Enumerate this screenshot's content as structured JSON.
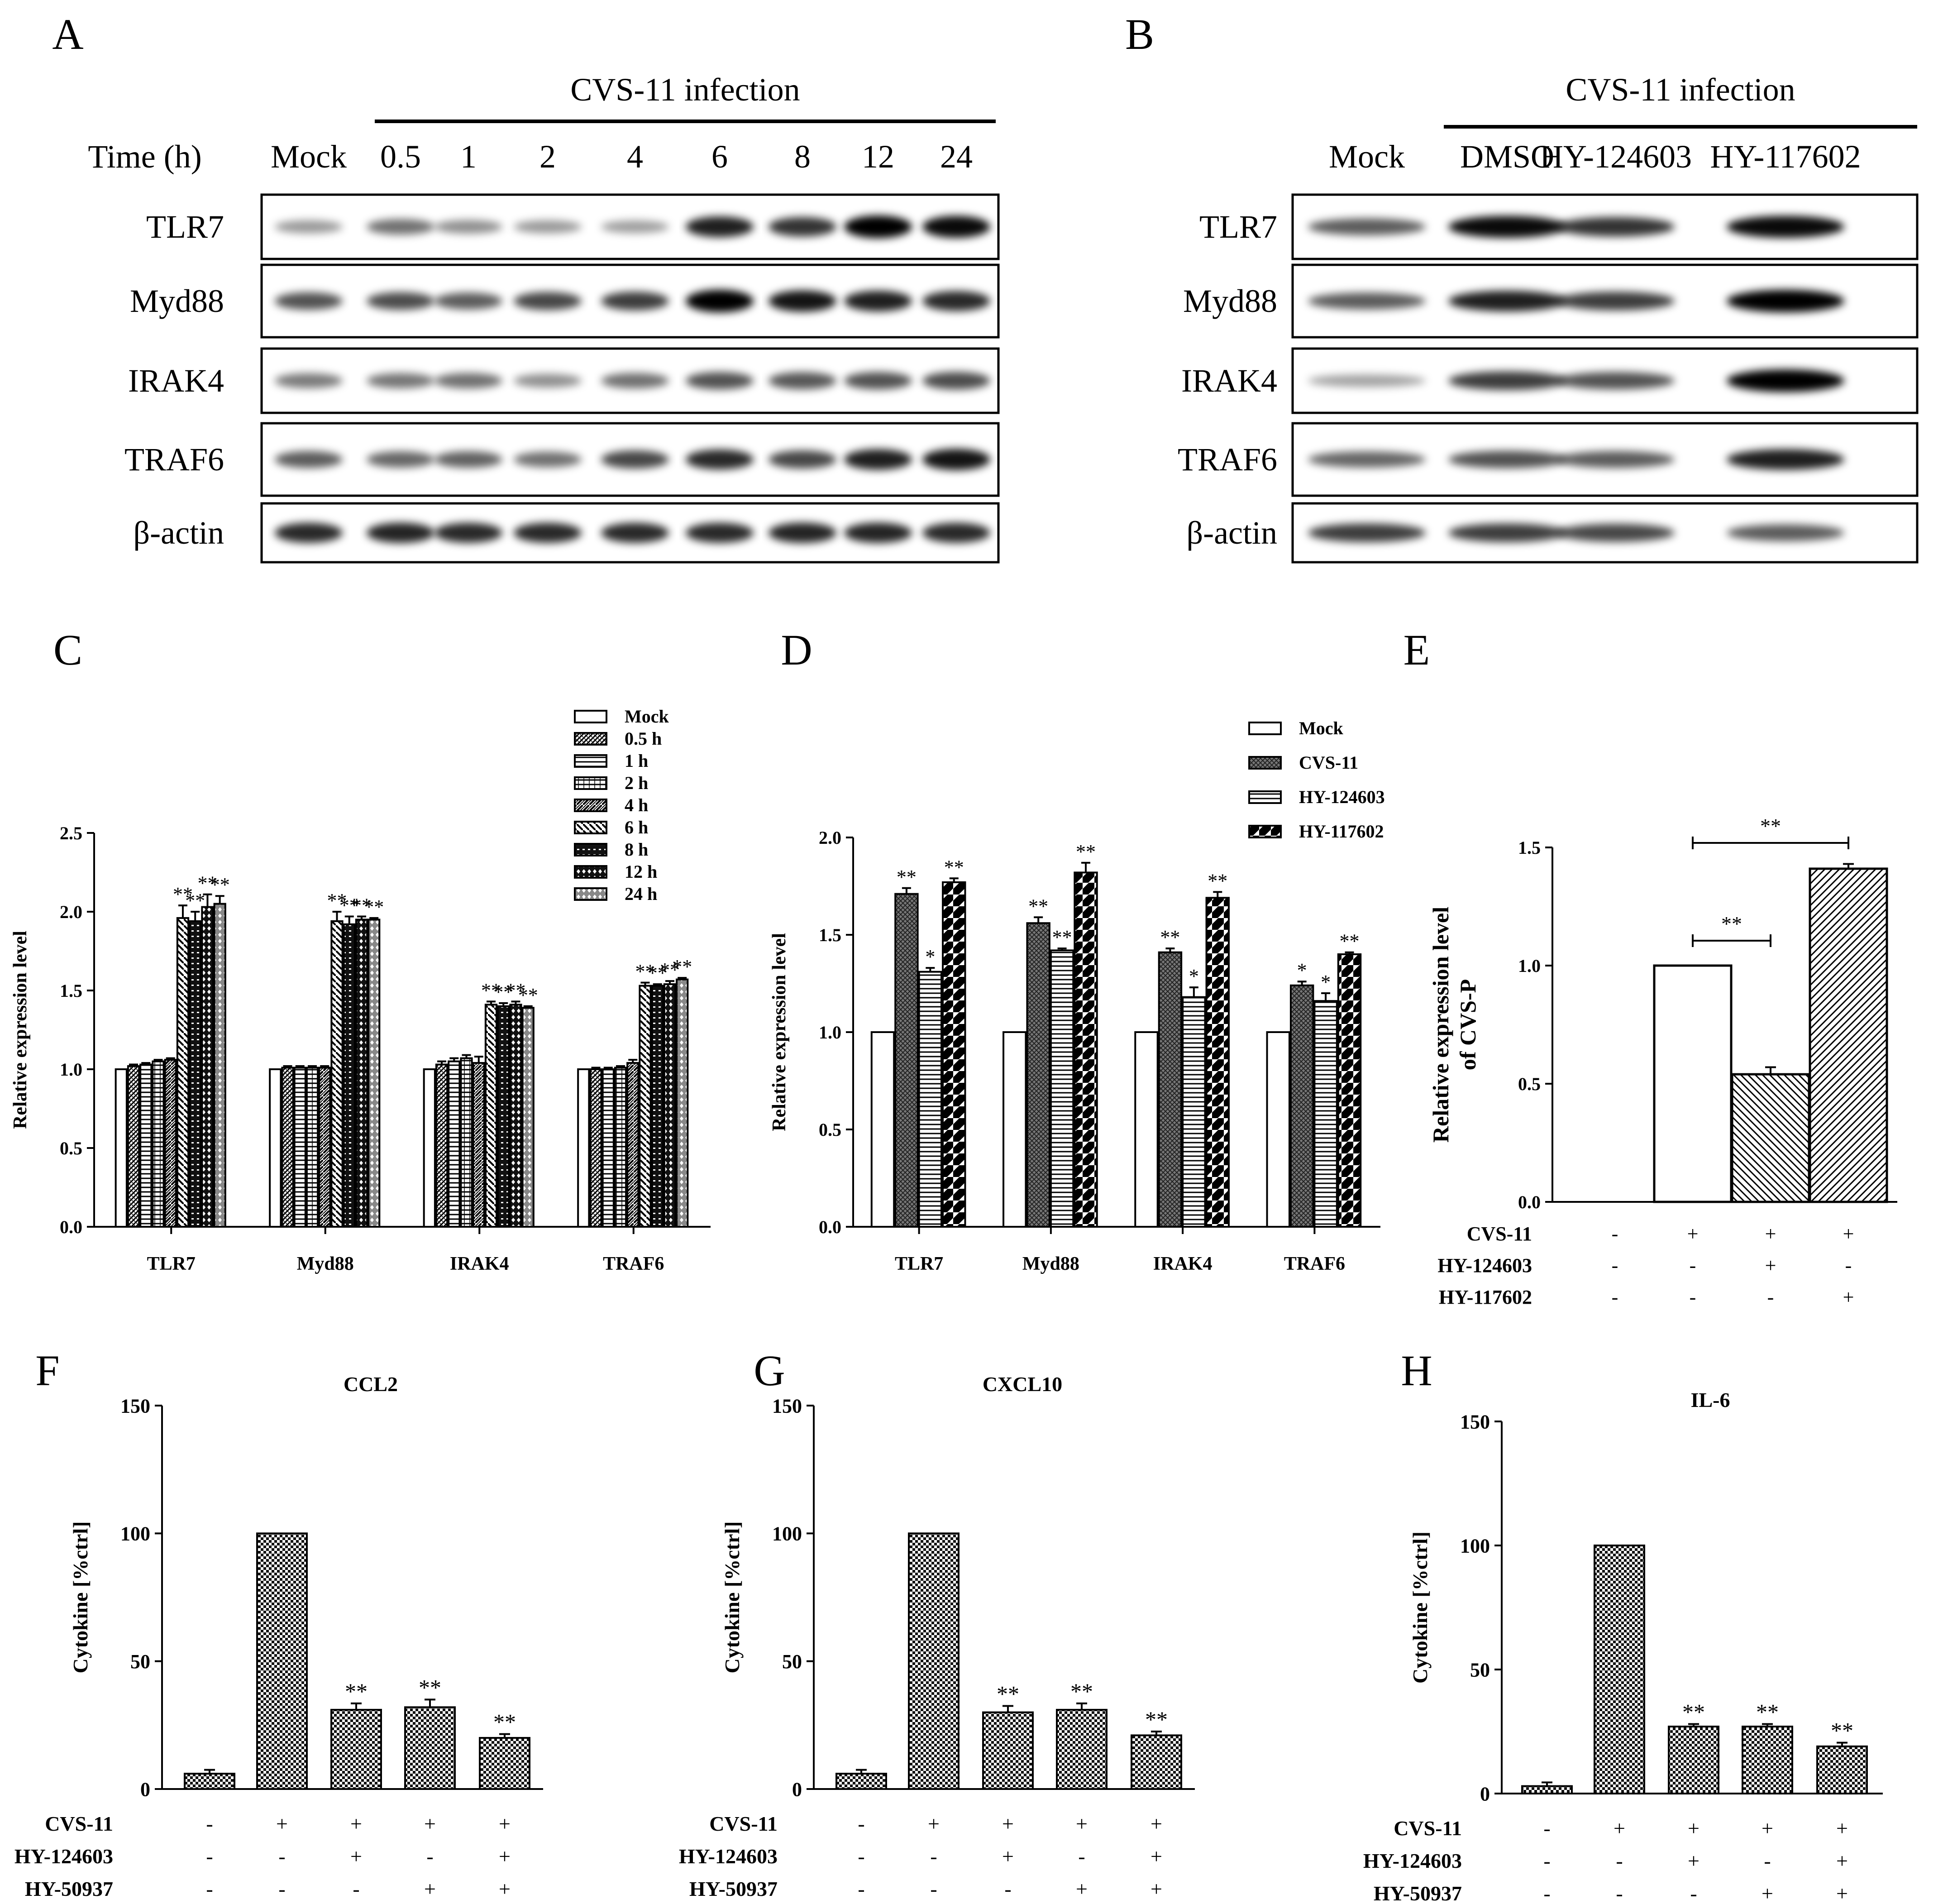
{
  "panels": {
    "A": {
      "letter": "A",
      "header": "CVS-11 infection",
      "time_label": "Time (h)",
      "lanes": [
        "Mock",
        "0.5",
        "1",
        "2",
        "4",
        "6",
        "8",
        "12",
        "24"
      ],
      "rows": [
        "TLR7",
        "Myd88",
        "IRAK4",
        "TRAF6",
        "β-actin"
      ]
    },
    "B": {
      "letter": "B",
      "header": "CVS-11 infection",
      "lanes": [
        "Mock",
        "DMSO",
        "HY-124603",
        "HY-117602"
      ],
      "rows": [
        "TLR7",
        "Myd88",
        "IRAK4",
        "TRAF6",
        "β-actin"
      ]
    },
    "C": {
      "letter": "C"
    },
    "D": {
      "letter": "D"
    },
    "E": {
      "letter": "E"
    },
    "F": {
      "letter": "F"
    },
    "G": {
      "letter": "G"
    },
    "H": {
      "letter": "H"
    }
  },
  "blots": {
    "A": [
      [
        0.25,
        0.45,
        0.3,
        0.25,
        0.22,
        0.85,
        0.75,
        1.0,
        0.95
      ],
      [
        0.6,
        0.62,
        0.55,
        0.65,
        0.7,
        1.0,
        0.9,
        0.85,
        0.8
      ],
      [
        0.4,
        0.42,
        0.45,
        0.3,
        0.45,
        0.6,
        0.58,
        0.6,
        0.62
      ],
      [
        0.55,
        0.5,
        0.52,
        0.45,
        0.65,
        0.8,
        0.65,
        0.85,
        0.9
      ],
      [
        0.8,
        0.82,
        0.8,
        0.8,
        0.8,
        0.8,
        0.82,
        0.82,
        0.8
      ]
    ],
    "B": [
      [
        0.55,
        0.95,
        0.75,
        0.95
      ],
      [
        0.55,
        0.85,
        0.7,
        1.0
      ],
      [
        0.2,
        0.7,
        0.6,
        1.0
      ],
      [
        0.5,
        0.6,
        0.55,
        0.85
      ],
      [
        0.7,
        0.7,
        0.65,
        0.55
      ]
    ]
  },
  "chart_data": [
    {
      "panel": "C",
      "type": "bar",
      "title": "",
      "xlabel": "",
      "ylabel": "Relative expression level",
      "ylim": [
        0,
        2.5
      ],
      "yticks": [
        "0.0",
        "0.5",
        "1.0",
        "1.5",
        "2.0",
        "2.5"
      ],
      "categories": [
        "TLR7",
        "Myd88",
        "IRAK4",
        "TRAF6"
      ],
      "series": [
        {
          "name": "Mock",
          "values": [
            1.0,
            1.0,
            1.0,
            1.0
          ],
          "err": [
            0.0,
            0.0,
            0.0,
            0.0
          ],
          "sig": [
            "",
            "",
            "",
            ""
          ]
        },
        {
          "name": "0.5 h",
          "values": [
            1.02,
            1.01,
            1.03,
            1.0
          ],
          "err": [
            0.01,
            0.01,
            0.02,
            0.01
          ],
          "sig": [
            "",
            "",
            "",
            ""
          ]
        },
        {
          "name": "1 h",
          "values": [
            1.03,
            1.01,
            1.05,
            1.0
          ],
          "err": [
            0.01,
            0.01,
            0.02,
            0.01
          ],
          "sig": [
            "",
            "",
            "",
            ""
          ]
        },
        {
          "name": "2 h",
          "values": [
            1.05,
            1.01,
            1.07,
            1.01
          ],
          "err": [
            0.01,
            0.01,
            0.02,
            0.01
          ],
          "sig": [
            "",
            "",
            "",
            ""
          ]
        },
        {
          "name": "4 h",
          "values": [
            1.06,
            1.01,
            1.04,
            1.04
          ],
          "err": [
            0.01,
            0.01,
            0.04,
            0.02
          ],
          "sig": [
            "",
            "",
            "",
            ""
          ]
        },
        {
          "name": "6 h",
          "values": [
            1.96,
            1.94,
            1.41,
            1.53
          ],
          "err": [
            0.08,
            0.06,
            0.02,
            0.02
          ],
          "sig": [
            "**",
            "**",
            "**",
            "**"
          ]
        },
        {
          "name": "8 h",
          "values": [
            1.94,
            1.92,
            1.4,
            1.53
          ],
          "err": [
            0.06,
            0.05,
            0.02,
            0.01
          ],
          "sig": [
            "**",
            "**",
            "**",
            "**"
          ]
        },
        {
          "name": "12 h",
          "values": [
            2.03,
            1.95,
            1.41,
            1.54
          ],
          "err": [
            0.08,
            0.02,
            0.02,
            0.02
          ],
          "sig": [
            "**",
            "**",
            "**",
            "**"
          ]
        },
        {
          "name": "24 h",
          "values": [
            2.05,
            1.95,
            1.39,
            1.57
          ],
          "err": [
            0.05,
            0.01,
            0.01,
            0.01
          ],
          "sig": [
            "**",
            "**",
            "**",
            "**"
          ]
        }
      ]
    },
    {
      "panel": "D",
      "type": "bar",
      "title": "",
      "xlabel": "",
      "ylabel": "Relative expression level",
      "ylim": [
        0,
        2.0
      ],
      "yticks": [
        "0.0",
        "0.5",
        "1.0",
        "1.5",
        "2.0"
      ],
      "categories": [
        "TLR7",
        "Myd88",
        "IRAK4",
        "TRAF6"
      ],
      "series": [
        {
          "name": "Mock",
          "values": [
            1.0,
            1.0,
            1.0,
            1.0
          ],
          "err": [
            0,
            0,
            0,
            0
          ],
          "sig": [
            "",
            "",
            "",
            ""
          ]
        },
        {
          "name": "CVS-11",
          "values": [
            1.71,
            1.56,
            1.41,
            1.24
          ],
          "err": [
            0.03,
            0.03,
            0.02,
            0.02
          ],
          "sig": [
            "**",
            "**",
            "**",
            "*"
          ]
        },
        {
          "name": "HY-124603",
          "values": [
            1.31,
            1.42,
            1.18,
            1.16
          ],
          "err": [
            0.02,
            0.01,
            0.05,
            0.04
          ],
          "sig": [
            "*",
            "**",
            "*",
            "*"
          ]
        },
        {
          "name": "HY-117602",
          "values": [
            1.77,
            1.82,
            1.69,
            1.4
          ],
          "err": [
            0.02,
            0.05,
            0.03,
            0.01
          ],
          "sig": [
            "**",
            "**",
            "**",
            "**"
          ]
        }
      ]
    },
    {
      "panel": "E",
      "type": "bar",
      "title": "",
      "xlabel": "",
      "ylabel": "Relative expression level of CVS-P",
      "ylim": [
        0,
        1.5
      ],
      "yticks": [
        "0.0",
        "0.5",
        "1.0",
        "1.5"
      ],
      "values": [
        0.0,
        1.0,
        0.54,
        1.41
      ],
      "err": [
        0,
        0,
        0.03,
        0.02
      ],
      "conditions": {
        "labels": [
          "CVS-11",
          "HY-124603",
          "HY-117602"
        ],
        "rows": [
          [
            "-",
            "+",
            "+",
            "+"
          ],
          [
            "-",
            "-",
            "+",
            "-"
          ],
          [
            "-",
            "-",
            "-",
            "+"
          ]
        ]
      },
      "brackets": [
        {
          "from": 1,
          "to": 2,
          "label": "**"
        },
        {
          "from": 1,
          "to": 3,
          "label": "**"
        }
      ]
    },
    {
      "panel": "F",
      "type": "bar",
      "title": "CCL2",
      "xlabel": "",
      "ylabel": "Cytokine [%ctrl]",
      "ylim": [
        0,
        150
      ],
      "yticks": [
        "0",
        "50",
        "100",
        "150"
      ],
      "values": [
        6,
        100,
        31,
        32,
        20
      ],
      "err": [
        1.5,
        0,
        2.5,
        3,
        1.5
      ],
      "sig": [
        "",
        "",
        "**",
        "**",
        "**"
      ],
      "conditions": {
        "labels": [
          "CVS-11",
          "HY-124603",
          "HY-50937"
        ],
        "rows": [
          [
            "-",
            "+",
            "+",
            "+",
            "+"
          ],
          [
            "-",
            "-",
            "+",
            "-",
            "+"
          ],
          [
            "-",
            "-",
            "-",
            "+",
            "+"
          ]
        ]
      }
    },
    {
      "panel": "G",
      "type": "bar",
      "title": "CXCL10",
      "xlabel": "",
      "ylabel": "Cytokine [%ctrl]",
      "ylim": [
        0,
        150
      ],
      "yticks": [
        "0",
        "50",
        "100",
        "150"
      ],
      "values": [
        6,
        100,
        30,
        31,
        21
      ],
      "err": [
        1.5,
        0,
        2.5,
        2.5,
        1.5
      ],
      "sig": [
        "",
        "",
        "**",
        "**",
        "**"
      ],
      "conditions": {
        "labels": [
          "CVS-11",
          "HY-124603",
          "HY-50937"
        ],
        "rows": [
          [
            "-",
            "+",
            "+",
            "+",
            "+"
          ],
          [
            "-",
            "-",
            "+",
            "-",
            "+"
          ],
          [
            "-",
            "-",
            "-",
            "+",
            "+"
          ]
        ]
      }
    },
    {
      "panel": "H",
      "type": "bar",
      "title": "IL-6",
      "xlabel": "",
      "ylabel": "Cytokine [%ctrl]",
      "ylim": [
        0,
        150
      ],
      "yticks": [
        "0",
        "50",
        "100",
        "150"
      ],
      "values": [
        3,
        100,
        27,
        27,
        19
      ],
      "err": [
        1.5,
        0,
        1,
        1,
        1.5
      ],
      "sig": [
        "",
        "",
        "**",
        "**",
        "**"
      ],
      "conditions": {
        "labels": [
          "CVS-11",
          "HY-124603",
          "HY-50937"
        ],
        "rows": [
          [
            "-",
            "+",
            "+",
            "+",
            "+"
          ],
          [
            "-",
            "-",
            "+",
            "-",
            "+"
          ],
          [
            "-",
            "-",
            "-",
            "+",
            "+"
          ]
        ]
      }
    }
  ]
}
